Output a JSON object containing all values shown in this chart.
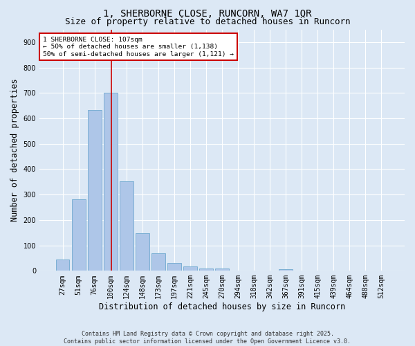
{
  "title": "1, SHERBORNE CLOSE, RUNCORN, WA7 1QR",
  "subtitle": "Size of property relative to detached houses in Runcorn",
  "xlabel": "Distribution of detached houses by size in Runcorn",
  "ylabel": "Number of detached properties",
  "footer": "Contains HM Land Registry data © Crown copyright and database right 2025.\nContains public sector information licensed under the Open Government Licence v3.0.",
  "categories": [
    "27sqm",
    "51sqm",
    "76sqm",
    "100sqm",
    "124sqm",
    "148sqm",
    "173sqm",
    "197sqm",
    "221sqm",
    "245sqm",
    "270sqm",
    "294sqm",
    "318sqm",
    "342sqm",
    "367sqm",
    "391sqm",
    "415sqm",
    "439sqm",
    "464sqm",
    "488sqm",
    "512sqm"
  ],
  "values": [
    45,
    282,
    632,
    700,
    352,
    148,
    68,
    31,
    16,
    10,
    8,
    0,
    0,
    0,
    7,
    0,
    0,
    0,
    0,
    0,
    0
  ],
  "bar_color": "#aec6e8",
  "bar_edge_color": "#7bafd4",
  "vline_x": 3.07,
  "vline_color": "#cc0000",
  "annotation_text": "1 SHERBORNE CLOSE: 107sqm\n← 50% of detached houses are smaller (1,138)\n50% of semi-detached houses are larger (1,121) →",
  "annotation_box_color": "#ffffff",
  "annotation_box_edge": "#cc0000",
  "ylim": [
    0,
    950
  ],
  "yticks": [
    0,
    100,
    200,
    300,
    400,
    500,
    600,
    700,
    800,
    900
  ],
  "bg_color": "#dce8f5",
  "grid_color": "#ffffff",
  "title_fontsize": 10,
  "subtitle_fontsize": 9,
  "tick_fontsize": 7,
  "label_fontsize": 8.5,
  "footer_fontsize": 6
}
